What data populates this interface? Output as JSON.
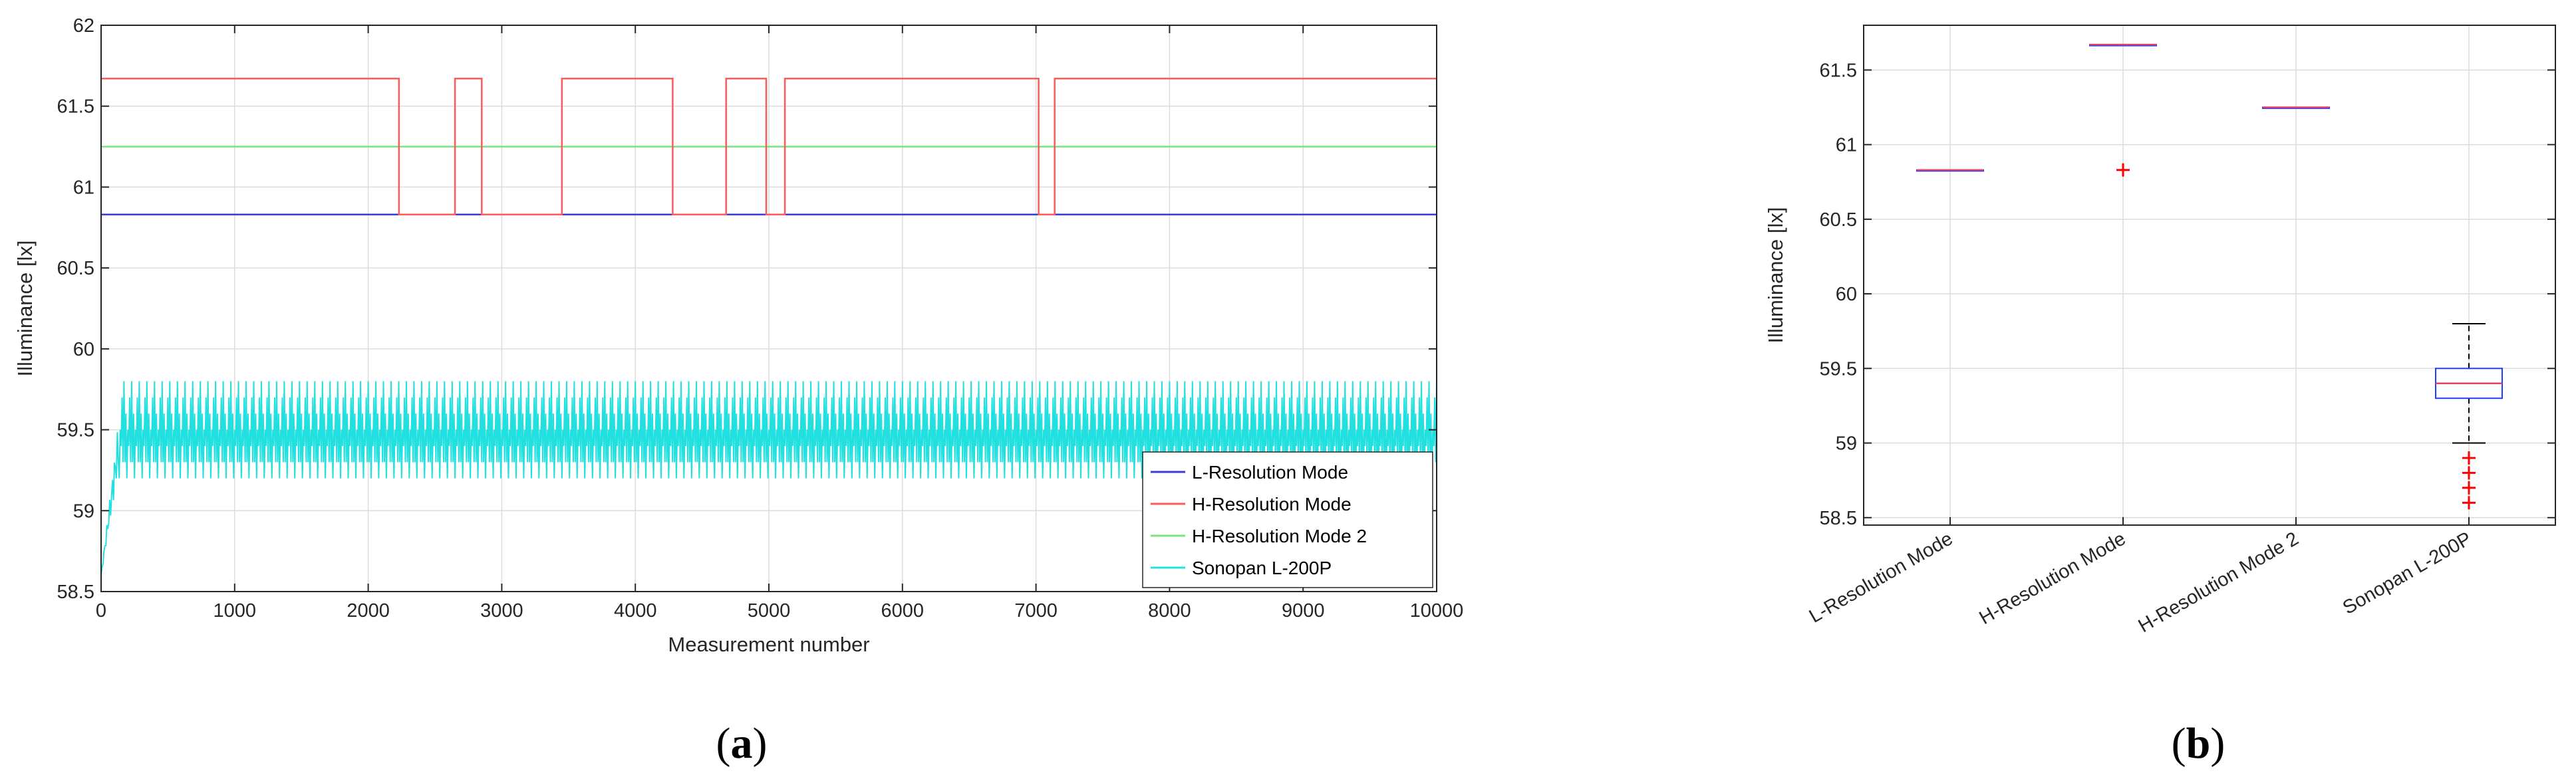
{
  "captions": {
    "a_open": "(",
    "a_letter": "a",
    "a_close": ")",
    "b_open": "(",
    "b_letter": "b",
    "b_close": ")"
  },
  "colors": {
    "l_mode": "#3b3bd6",
    "h_mode": "#ff5a5a",
    "h_mode2": "#7ce37c",
    "sonopan": "#22e0e0",
    "outlier": "#ff0000",
    "box": "#1f3cff",
    "median": "#e8405a",
    "grid": "#dcdcdc",
    "axis": "#262626"
  },
  "chart_data": [
    {
      "type": "line",
      "panel": "a",
      "xlabel": "Measurement number",
      "ylabel": "Illuminance [lx]",
      "xlim": [
        0,
        10000
      ],
      "ylim": [
        58.5,
        62
      ],
      "xticks": [
        0,
        1000,
        2000,
        3000,
        4000,
        5000,
        6000,
        7000,
        8000,
        9000,
        10000
      ],
      "yticks": [
        58.5,
        59,
        59.5,
        60,
        60.5,
        61,
        61.5,
        62
      ],
      "grid": true,
      "legend_position": "bottom-right",
      "series": [
        {
          "name": "L-Resolution Mode",
          "color": "#3b3bd6",
          "x": [
            0,
            10000
          ],
          "y": [
            60.83,
            60.83
          ]
        },
        {
          "name": "H-Resolution Mode",
          "color": "#ff5a5a",
          "x": [
            0,
            2230,
            2230,
            2650,
            2650,
            2850,
            2850,
            3450,
            3450,
            4280,
            4280,
            4680,
            4680,
            4980,
            4980,
            5120,
            5120,
            7020,
            7020,
            7140,
            7140,
            10000
          ],
          "y": [
            61.67,
            61.67,
            60.83,
            60.83,
            61.67,
            61.67,
            60.83,
            60.83,
            61.67,
            61.67,
            60.83,
            60.83,
            61.67,
            61.67,
            60.83,
            60.83,
            61.67,
            61.67,
            60.83,
            60.83,
            61.67,
            61.67
          ]
        },
        {
          "name": "H-Resolution Mode 2",
          "color": "#7ce37c",
          "x": [
            0,
            10000
          ],
          "y": [
            61.25,
            61.25
          ]
        },
        {
          "name": "Sonopan L-200P",
          "color": "#22e0e0",
          "description_values": {
            "start": 58.6,
            "rise_end_x": 130,
            "band_low": 59.2,
            "band_high": 59.8,
            "median": 59.4,
            "oscillation_period": 75
          }
        }
      ]
    },
    {
      "type": "box",
      "panel": "b",
      "ylabel": "Illuminance [lx]",
      "ylim": [
        58.45,
        61.8
      ],
      "yticks": [
        58.5,
        59,
        59.5,
        60,
        60.5,
        61,
        61.5
      ],
      "categories": [
        "L-Resolution Mode",
        "H-Resolution Mode",
        "H-Resolution Mode 2",
        "Sonopan L-200P"
      ],
      "grid": true,
      "boxes": [
        {
          "name": "L-Resolution Mode",
          "median": 60.83,
          "q1": 60.83,
          "q3": 60.83,
          "whisker_low": 60.83,
          "whisker_high": 60.83,
          "outliers": []
        },
        {
          "name": "H-Resolution Mode",
          "median": 61.67,
          "q1": 61.67,
          "q3": 61.67,
          "whisker_low": 61.67,
          "whisker_high": 61.67,
          "outliers": [
            60.83
          ]
        },
        {
          "name": "H-Resolution Mode 2",
          "median": 61.25,
          "q1": 61.25,
          "q3": 61.25,
          "whisker_low": 61.25,
          "whisker_high": 61.25,
          "outliers": []
        },
        {
          "name": "Sonopan L-200P",
          "median": 59.4,
          "q1": 59.3,
          "q3": 59.5,
          "whisker_low": 59.0,
          "whisker_high": 59.8,
          "outliers": [
            58.9,
            58.8,
            58.7,
            58.6
          ]
        }
      ]
    }
  ]
}
